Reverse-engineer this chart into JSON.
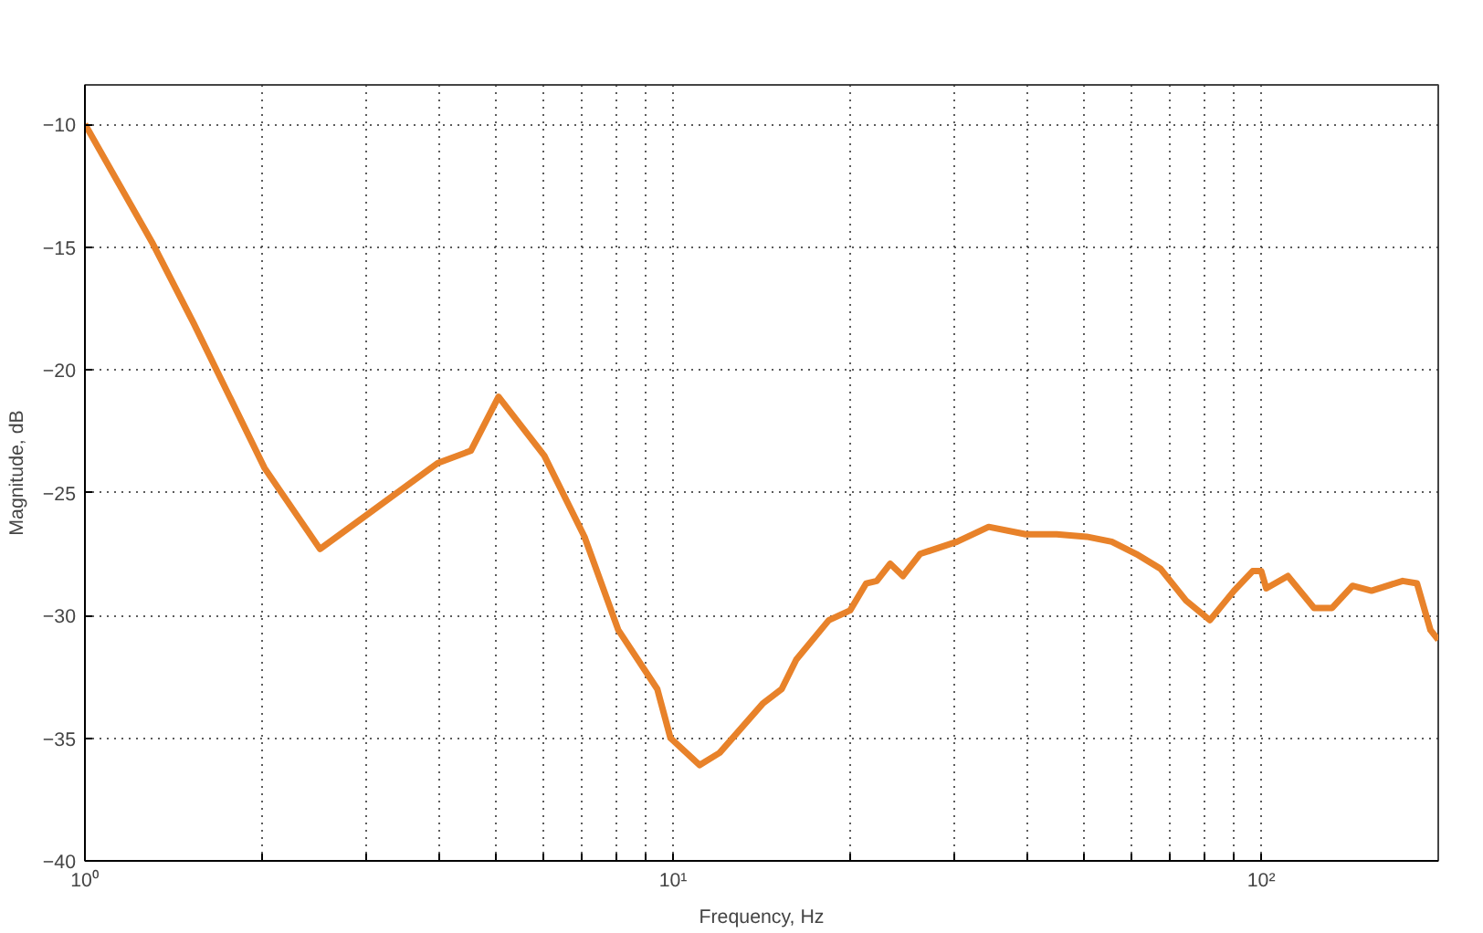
{
  "chart_data": {
    "type": "line",
    "xlabel": "Frequency, Hz",
    "ylabel": "Magnitude, dB",
    "log": "x",
    "grid": true,
    "marker": "none",
    "line_style": "solid",
    "xlim": [
      1,
      200
    ],
    "ylim": [
      -40,
      -8.4
    ],
    "xticks": [
      {
        "value": 1,
        "label": "10⁰"
      },
      {
        "value": 2,
        "label": null
      },
      {
        "value": 3,
        "label": null
      },
      {
        "value": 4,
        "label": null
      },
      {
        "value": 5,
        "label": null
      },
      {
        "value": 6,
        "label": null
      },
      {
        "value": 7,
        "label": null
      },
      {
        "value": 8,
        "label": null
      },
      {
        "value": 9,
        "label": null
      },
      {
        "value": 10,
        "label": "10¹"
      },
      {
        "value": 20,
        "label": null
      },
      {
        "value": 30,
        "label": null
      },
      {
        "value": 40,
        "label": null
      },
      {
        "value": 50,
        "label": null
      },
      {
        "value": 60,
        "label": null
      },
      {
        "value": 70,
        "label": null
      },
      {
        "value": 80,
        "label": null
      },
      {
        "value": 90,
        "label": null
      },
      {
        "value": 100,
        "label": "10²"
      }
    ],
    "yticks": [
      -40,
      -35,
      -30,
      -25,
      -20,
      -15,
      -10
    ],
    "x": [
      1,
      1.3,
      1.53,
      2.02,
      2.51,
      2.98,
      3.98,
      4.53,
      5.05,
      6.04,
      7.07,
      8.07,
      9.4,
      9.9,
      11.1,
      12.0,
      14.2,
      15.3,
      16.2,
      18.4,
      20.0,
      21.3,
      22.2,
      23.4,
      24.6,
      26.3,
      30.4,
      34.4,
      39.8,
      44.9,
      50.5,
      55.7,
      61.3,
      67.4,
      74.5,
      81.8,
      89.9,
      96.7,
      100,
      102,
      111,
      123,
      132,
      143,
      154,
      174,
      184,
      194,
      200
    ],
    "series": [
      {
        "color": "#e8822a",
        "values": [
          -10,
          -14.8,
          -18.1,
          -24.0,
          -27.3,
          -26.0,
          -23.8,
          -23.3,
          -21.1,
          -23.5,
          -26.8,
          -30.6,
          -33.0,
          -35.0,
          -36.1,
          -35.6,
          -33.6,
          -33.0,
          -31.8,
          -30.2,
          -29.8,
          -28.7,
          -28.6,
          -27.9,
          -28.4,
          -27.5,
          -27.0,
          -26.4,
          -26.7,
          -26.7,
          -26.8,
          -27.0,
          -27.5,
          -28.1,
          -29.4,
          -30.2,
          -29.0,
          -28.2,
          -28.2,
          -28.9,
          -28.4,
          -29.7,
          -29.7,
          -28.8,
          -29.0,
          -28.6,
          -28.7,
          -30.6,
          -31.0
        ]
      }
    ]
  }
}
